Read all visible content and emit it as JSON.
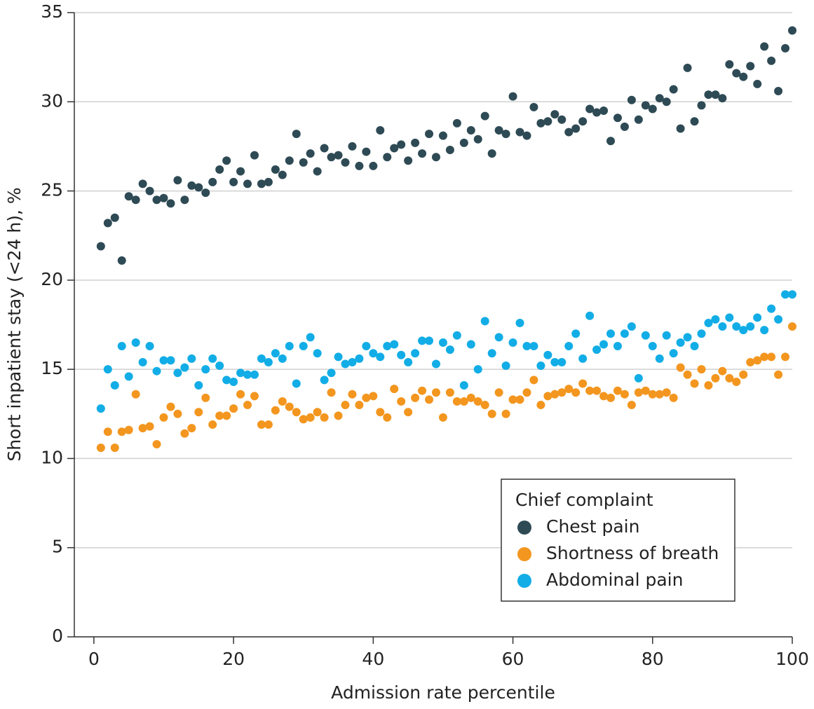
{
  "chart_data": {
    "type": "scatter",
    "xlabel": "Admission rate percentile",
    "ylabel": "Short inpatient stay (<24 h), %",
    "xlim": [
      -2.8,
      100
    ],
    "ylim": [
      0,
      35
    ],
    "xticks": [
      0,
      20,
      40,
      60,
      80,
      100
    ],
    "yticks": [
      0,
      5,
      10,
      15,
      20,
      25,
      30,
      35
    ],
    "grid": true,
    "legend_title": "Chief complaint",
    "legend_position": "lower right",
    "x": [
      1,
      2,
      3,
      4,
      5,
      6,
      7,
      8,
      9,
      10,
      11,
      12,
      13,
      14,
      15,
      16,
      17,
      18,
      19,
      20,
      21,
      22,
      23,
      24,
      25,
      26,
      27,
      28,
      29,
      30,
      31,
      32,
      33,
      34,
      35,
      36,
      37,
      38,
      39,
      40,
      41,
      42,
      43,
      44,
      45,
      46,
      47,
      48,
      49,
      50,
      51,
      52,
      53,
      54,
      55,
      56,
      57,
      58,
      59,
      60,
      61,
      62,
      63,
      64,
      65,
      66,
      67,
      68,
      69,
      70,
      71,
      72,
      73,
      74,
      75,
      76,
      77,
      78,
      79,
      80,
      81,
      82,
      83,
      84,
      85,
      86,
      87,
      88,
      89,
      90,
      91,
      92,
      93,
      94,
      95,
      96,
      97,
      98,
      99,
      100
    ],
    "series": [
      {
        "name": "Chest pain",
        "color": "#2e4a55",
        "values": [
          21.9,
          23.2,
          23.5,
          21.1,
          24.7,
          24.5,
          25.4,
          25.0,
          24.5,
          24.6,
          24.3,
          25.6,
          24.5,
          25.3,
          25.2,
          24.9,
          25.5,
          26.2,
          26.7,
          25.5,
          26.1,
          25.4,
          27.0,
          25.4,
          25.5,
          26.2,
          25.9,
          26.7,
          28.2,
          26.6,
          27.1,
          26.1,
          27.4,
          26.9,
          27.0,
          26.6,
          27.5,
          26.4,
          27.2,
          26.4,
          28.4,
          26.9,
          27.4,
          27.6,
          26.7,
          27.7,
          27.1,
          28.2,
          26.9,
          28.1,
          27.3,
          28.8,
          27.7,
          28.4,
          27.9,
          29.2,
          27.1,
          28.4,
          28.2,
          30.3,
          28.3,
          28.1,
          29.7,
          28.8,
          28.9,
          29.3,
          29.0,
          28.3,
          28.5,
          28.9,
          29.6,
          29.4,
          29.5,
          27.8,
          29.1,
          28.6,
          30.1,
          29.0,
          29.8,
          29.6,
          30.2,
          30.0,
          30.7,
          28.5,
          31.9,
          28.9,
          29.8,
          30.4,
          30.4,
          30.2,
          32.1,
          31.6,
          31.4,
          32.0,
          31.0,
          33.1,
          32.3,
          30.6,
          33.0,
          34.0
        ]
      },
      {
        "name": "Shortness of breath",
        "color": "#f3961f",
        "values": [
          10.6,
          11.5,
          10.6,
          11.5,
          11.6,
          13.6,
          11.7,
          11.8,
          10.8,
          12.3,
          12.9,
          12.5,
          11.4,
          11.7,
          12.6,
          13.4,
          11.9,
          12.4,
          12.4,
          12.8,
          13.6,
          13.0,
          13.5,
          11.9,
          11.9,
          12.7,
          13.2,
          12.9,
          12.6,
          12.2,
          12.3,
          12.6,
          12.3,
          13.7,
          12.4,
          13.0,
          13.6,
          13.0,
          13.4,
          13.5,
          12.6,
          12.3,
          13.9,
          13.2,
          12.6,
          13.4,
          13.8,
          13.3,
          13.7,
          12.3,
          13.7,
          13.2,
          13.2,
          13.4,
          13.2,
          13.0,
          12.5,
          13.7,
          12.5,
          13.3,
          13.3,
          13.7,
          14.4,
          13.0,
          13.5,
          13.6,
          13.7,
          13.9,
          13.7,
          14.2,
          13.8,
          13.8,
          13.5,
          13.4,
          13.8,
          13.6,
          13.0,
          13.7,
          13.8,
          13.6,
          13.6,
          13.7,
          13.4,
          15.1,
          14.7,
          14.2,
          15.0,
          14.1,
          14.5,
          14.9,
          14.5,
          14.3,
          14.7,
          15.4,
          15.5,
          15.7,
          15.7,
          14.7,
          15.7,
          17.4
        ]
      },
      {
        "name": "Abdominal pain",
        "color": "#12ade6",
        "values": [
          12.8,
          15.0,
          14.1,
          16.3,
          14.6,
          16.5,
          15.4,
          16.3,
          14.9,
          15.5,
          15.5,
          14.8,
          15.1,
          15.6,
          14.1,
          15.0,
          15.6,
          15.2,
          14.4,
          14.3,
          14.8,
          14.7,
          14.7,
          15.6,
          15.4,
          15.9,
          15.6,
          16.3,
          14.2,
          16.3,
          16.8,
          15.9,
          14.4,
          14.8,
          15.7,
          15.3,
          15.4,
          15.6,
          16.3,
          15.9,
          15.7,
          16.3,
          16.4,
          15.8,
          15.4,
          15.9,
          16.6,
          16.6,
          15.3,
          16.5,
          16.1,
          16.9,
          14.1,
          16.4,
          15.0,
          17.7,
          15.9,
          16.8,
          15.2,
          16.5,
          17.6,
          16.3,
          16.3,
          15.2,
          15.8,
          15.4,
          15.4,
          16.3,
          17.0,
          15.6,
          18.0,
          16.1,
          16.4,
          17.0,
          16.3,
          17.0,
          17.4,
          14.5,
          16.9,
          16.3,
          15.6,
          16.9,
          15.9,
          16.5,
          16.8,
          16.3,
          17.0,
          17.6,
          17.8,
          17.4,
          17.9,
          17.4,
          17.2,
          17.4,
          17.9,
          17.2,
          18.4,
          17.8,
          19.2,
          19.2
        ]
      }
    ]
  }
}
